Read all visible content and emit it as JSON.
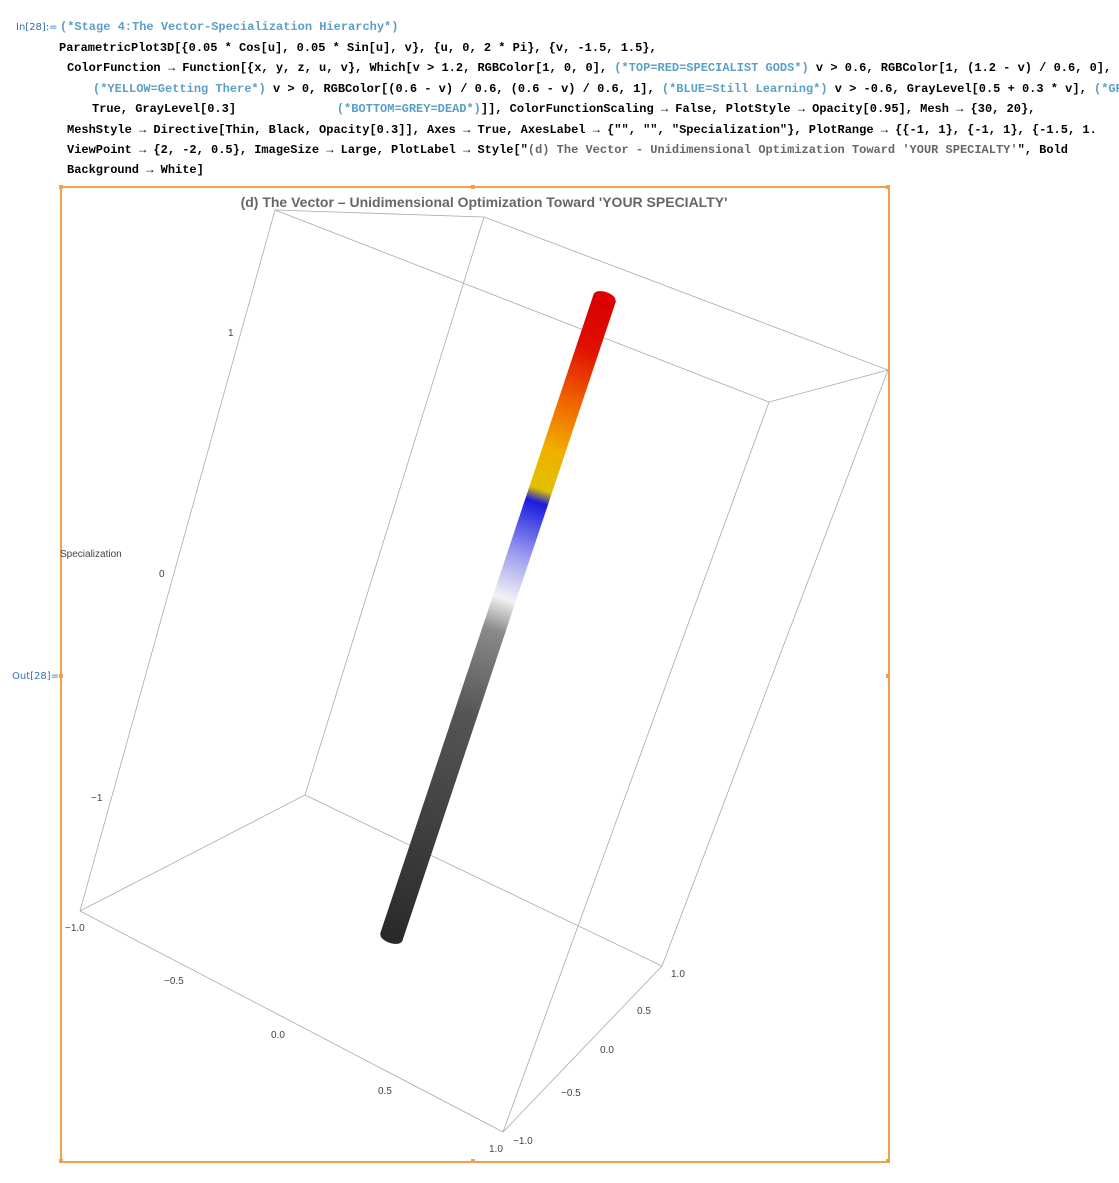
{
  "cell": {
    "in_label": "In[28]:=",
    "out_label": "Out[28]=",
    "code_lines": [
      [
        {
          "text": "(*Stage 4:The Vector-Specialization Hierarchy*)",
          "color": "#5a9fc6"
        }
      ],
      [
        {
          "text": "ParametricPlot3D[{0.05 * Cos[u], 0.05 * Sin[u], v}, {u, 0, 2 * Pi}, {v, -1.5, 1.5},",
          "color": "#000000"
        }
      ],
      [
        {
          "text": "ColorFunction → Function[{x, y, z, u, v}, Which[v > 1.2, RGBColor[1, 0, 0], ",
          "color": "#000000"
        },
        {
          "text": "(*TOP=RED=SPECIALIST GODS*)",
          "color": "#5a9fc6"
        },
        {
          "text": " v > 0.6, RGBColor[1, (1.2 - v) / 0.6, 0],",
          "color": "#000000"
        }
      ],
      [
        {
          "text": "(*YELLOW=Getting There*)",
          "color": "#5a9fc6"
        },
        {
          "text": " v > 0, RGBColor[(0.6 - v) / 0.6, (0.6 - v) / 0.6, 1], ",
          "color": "#000000"
        },
        {
          "text": "(*BLUE=Still Learning*)",
          "color": "#5a9fc6"
        },
        {
          "text": " v > -0.6, GrayLevel[0.5 + 0.3 * v], ",
          "color": "#000000"
        },
        {
          "text": "(*GREY",
          "color": "#5a9fc6"
        }
      ],
      [
        {
          "text": "True, GrayLevel[0.3]              ",
          "color": "#000000"
        },
        {
          "text": "(*BOTTOM=GREY=DEAD*)",
          "color": "#5a9fc6"
        },
        {
          "text": "]], ColorFunctionScaling → False, PlotStyle → Opacity[0.95], Mesh → {30, 20},",
          "color": "#000000"
        }
      ],
      [
        {
          "text": "MeshStyle → Directive[Thin, Black, Opacity[0.3]], Axes → True, AxesLabel → {\"\", \"\", \"Specialization\"}, PlotRange → {{-1, 1}, {-1, 1}, {-1.5, 1.",
          "color": "#000000"
        }
      ],
      [
        {
          "text": "ViewPoint → {2, -2, 0.5}, ImageSize → Large, PlotLabel → Style[\"",
          "color": "#000000"
        },
        {
          "text": "(d) The Vector - Unidimensional Optimization Toward 'YOUR SPECIALTY'",
          "color": "#666666"
        },
        {
          "text": "\", Bold",
          "color": "#000000"
        }
      ],
      [
        {
          "text": "Background → White]",
          "color": "#000000"
        }
      ]
    ]
  },
  "plot": {
    "title": "(d) The Vector – Unidimensional Optimization Toward 'YOUR SPECIALTY'",
    "z_axis_label": "Specialization",
    "z_ticks": [
      "1",
      "0",
      "−1"
    ],
    "x_ticks": [
      "−1.0",
      "−0.5",
      "0.0",
      "0.5",
      "1.0"
    ],
    "y_ticks": [
      "1.0",
      "0.5",
      "0.0",
      "−0.5",
      "−1.0"
    ]
  }
}
